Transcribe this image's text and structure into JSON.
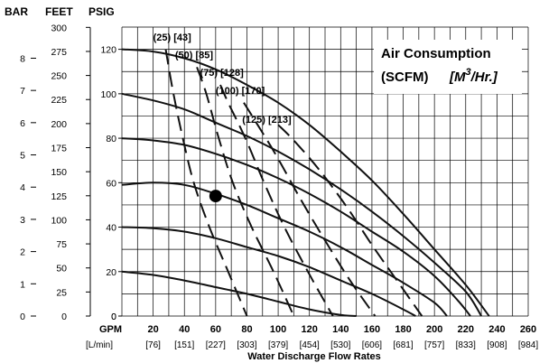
{
  "chart_data": {
    "type": "line",
    "title": "",
    "x_axis": {
      "unit_label": "GPM",
      "unit_label_metric": "[L/min]",
      "title": "Water Discharge Flow Rates",
      "range": [
        0,
        260
      ],
      "ticks": [
        0,
        20,
        40,
        60,
        80,
        100,
        120,
        140,
        160,
        180,
        200,
        220,
        240,
        260
      ],
      "tick_labels": [
        "0",
        "20",
        "40",
        "60",
        "80",
        "100",
        "120",
        "140",
        "160",
        "180",
        "200",
        "220",
        "240",
        "260"
      ],
      "metric_tick_labels": [
        "[76]",
        "[151]",
        "[227]",
        "[303]",
        "[379]",
        "[454]",
        "[530]",
        "[606]",
        "[681]",
        "[757]",
        "[833]",
        "[908]",
        "[984]"
      ]
    },
    "y_axis": {
      "psig": {
        "label": "PSIG",
        "range": [
          0,
          130
        ],
        "ticks": [
          0,
          20,
          40,
          60,
          80,
          100,
          120
        ],
        "tick_labels": [
          "0",
          "20",
          "40",
          "60",
          "80",
          "100",
          "120"
        ]
      },
      "feet": {
        "label": "FEET",
        "ticks": [
          0,
          25,
          50,
          75,
          100,
          125,
          150,
          175,
          200,
          225,
          250,
          275,
          300
        ],
        "tick_labels": [
          "0",
          "25",
          "50",
          "75",
          "100",
          "125",
          "150",
          "175",
          "200",
          "225",
          "250",
          "275",
          "300"
        ]
      },
      "bar": {
        "label": "BAR",
        "ticks": [
          0,
          1,
          2,
          3,
          4,
          5,
          6,
          7,
          8
        ],
        "tick_labels": [
          "0",
          "1",
          "2",
          "3",
          "4",
          "5",
          "6",
          "7",
          "8"
        ]
      }
    },
    "grid": true,
    "legend": {
      "line1": "Air Consumption",
      "line2a": "(SCFM)",
      "line2b_main": "[M",
      "line2b_sup": "3",
      "line2b_tail": "/Hr.]",
      "placement": "top-right"
    },
    "performance_curves": [
      {
        "shutoff_psig": 120,
        "points": [
          [
            0,
            120
          ],
          [
            20,
            119
          ],
          [
            40,
            116
          ],
          [
            60,
            111
          ],
          [
            80,
            104
          ],
          [
            100,
            96
          ],
          [
            120,
            86
          ],
          [
            140,
            74
          ],
          [
            160,
            61
          ],
          [
            180,
            46
          ],
          [
            200,
            30
          ],
          [
            220,
            14
          ],
          [
            235,
            0
          ]
        ]
      },
      {
        "shutoff_psig": 100,
        "points": [
          [
            0,
            100
          ],
          [
            20,
            97
          ],
          [
            40,
            93
          ],
          [
            60,
            87
          ],
          [
            80,
            81
          ],
          [
            100,
            74
          ],
          [
            120,
            66
          ],
          [
            140,
            57
          ],
          [
            160,
            47
          ],
          [
            180,
            36
          ],
          [
            200,
            24
          ],
          [
            220,
            11
          ],
          [
            230,
            0
          ]
        ]
      },
      {
        "shutoff_psig": 80,
        "points": [
          [
            0,
            80
          ],
          [
            20,
            79
          ],
          [
            40,
            77
          ],
          [
            60,
            73
          ],
          [
            80,
            68
          ],
          [
            100,
            62
          ],
          [
            120,
            55
          ],
          [
            140,
            47
          ],
          [
            160,
            38
          ],
          [
            180,
            29
          ],
          [
            200,
            18
          ],
          [
            215,
            7
          ],
          [
            223,
            0
          ]
        ]
      },
      {
        "shutoff_psig": 60,
        "points": [
          [
            0,
            59
          ],
          [
            20,
            60
          ],
          [
            40,
            59
          ],
          [
            60,
            55
          ],
          [
            80,
            50
          ],
          [
            100,
            44
          ],
          [
            120,
            38
          ],
          [
            140,
            31
          ],
          [
            160,
            23
          ],
          [
            180,
            15
          ],
          [
            200,
            6
          ],
          [
            208,
            0
          ]
        ]
      },
      {
        "shutoff_psig": 40,
        "points": [
          [
            0,
            40
          ],
          [
            20,
            39.5
          ],
          [
            40,
            38
          ],
          [
            60,
            35
          ],
          [
            80,
            31
          ],
          [
            100,
            27
          ],
          [
            120,
            22
          ],
          [
            140,
            16
          ],
          [
            160,
            10
          ],
          [
            180,
            3
          ],
          [
            188,
            0
          ]
        ]
      },
      {
        "shutoff_psig": 20,
        "points": [
          [
            0,
            20
          ],
          [
            20,
            18.5
          ],
          [
            40,
            16
          ],
          [
            60,
            13
          ],
          [
            80,
            10
          ],
          [
            100,
            6.5
          ],
          [
            120,
            3
          ],
          [
            140,
            0.5
          ],
          [
            150,
            0
          ]
        ]
      }
    ],
    "air_consumption_curves": [
      {
        "label": "(25) [43]",
        "points": [
          [
            28,
            120
          ],
          [
            33,
            100
          ],
          [
            39,
            80
          ],
          [
            46,
            60
          ],
          [
            56,
            40
          ],
          [
            68,
            20
          ],
          [
            80,
            0
          ]
        ]
      },
      {
        "label": "(50) [85]",
        "points": [
          [
            48,
            112
          ],
          [
            54,
            100
          ],
          [
            62,
            80
          ],
          [
            71,
            60
          ],
          [
            83,
            40
          ],
          [
            97,
            20
          ],
          [
            110,
            0
          ]
        ]
      },
      {
        "label": "(75) [128]",
        "points": [
          [
            63,
            104
          ],
          [
            68,
            96
          ],
          [
            79,
            80
          ],
          [
            91,
            60
          ],
          [
            104,
            40
          ],
          [
            119,
            20
          ],
          [
            135,
            0
          ]
        ]
      },
      {
        "label": "(100) [170]",
        "points": [
          [
            78,
            96
          ],
          [
            86,
            87
          ],
          [
            99,
            72
          ],
          [
            114,
            53
          ],
          [
            130,
            34
          ],
          [
            146,
            16
          ],
          [
            162,
            0
          ]
        ]
      },
      {
        "label": "(125) [213]",
        "points": [
          [
            100,
            86
          ],
          [
            110,
            79
          ],
          [
            126,
            66
          ],
          [
            144,
            49
          ],
          [
            160,
            32
          ],
          [
            176,
            16
          ],
          [
            192,
            0
          ]
        ]
      }
    ],
    "air_labels": [
      {
        "text": "(25) [43]",
        "at": [
          20,
          124
        ]
      },
      {
        "text": "(50) [85]",
        "at": [
          34,
          116
        ]
      },
      {
        "text": "(75) [128]",
        "at": [
          50,
          108
        ]
      },
      {
        "text": "(100) [170]",
        "at": [
          60,
          100
        ]
      },
      {
        "text": "(125) [213]",
        "at": [
          77,
          87
        ]
      }
    ],
    "operating_point": [
      60,
      54
    ]
  }
}
